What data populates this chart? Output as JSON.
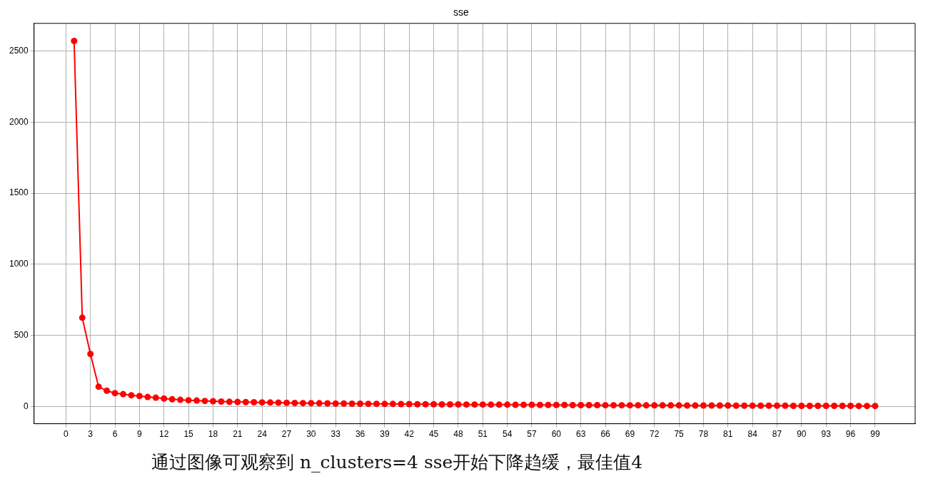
{
  "chart_data": {
    "type": "line",
    "title": "sse",
    "x": [
      1,
      2,
      3,
      4,
      5,
      6,
      7,
      8,
      9,
      10,
      11,
      12,
      13,
      14,
      15,
      16,
      17,
      18,
      19,
      20,
      21,
      22,
      23,
      24,
      25,
      26,
      27,
      28,
      29,
      30,
      31,
      32,
      33,
      34,
      35,
      36,
      37,
      38,
      39,
      40,
      41,
      42,
      43,
      44,
      45,
      46,
      47,
      48,
      49,
      50,
      51,
      52,
      53,
      54,
      55,
      56,
      57,
      58,
      59,
      60,
      61,
      62,
      63,
      64,
      65,
      66,
      67,
      68,
      69,
      70,
      71,
      72,
      73,
      74,
      75,
      76,
      77,
      78,
      79,
      80,
      81,
      82,
      83,
      84,
      85,
      86,
      87,
      88,
      89,
      90,
      91,
      92,
      93,
      94,
      95,
      96,
      97,
      98,
      99
    ],
    "series": [
      {
        "color": "#ff0000",
        "values": [
          2570,
          625,
          370,
          140,
          112,
          95,
          88,
          80,
          75,
          68,
          63,
          57,
          52,
          48,
          45,
          43,
          40,
          38,
          36,
          34,
          33,
          32,
          31,
          30,
          29,
          28,
          27,
          26,
          25,
          25,
          24,
          23,
          22,
          22,
          21,
          21,
          20,
          20,
          19,
          19,
          18,
          18,
          17,
          17,
          17,
          16,
          16,
          16,
          15,
          15,
          15,
          14,
          14,
          14,
          13,
          13,
          13,
          12,
          12,
          12,
          12,
          11,
          11,
          11,
          11,
          10,
          10,
          10,
          10,
          10,
          9,
          9,
          9,
          9,
          9,
          8,
          8,
          8,
          8,
          8,
          8,
          7,
          7,
          7,
          7,
          7,
          7,
          7,
          6,
          6,
          6,
          6,
          6,
          6,
          6,
          6,
          5,
          5,
          5
        ]
      }
    ],
    "xlim": [
      -3.9,
      103.9
    ],
    "xticks": [
      0,
      3,
      6,
      9,
      12,
      15,
      18,
      21,
      24,
      27,
      30,
      33,
      36,
      39,
      42,
      45,
      48,
      51,
      54,
      57,
      60,
      63,
      66,
      69,
      72,
      75,
      78,
      81,
      84,
      87,
      90,
      93,
      96,
      99
    ],
    "ylim": [
      -120,
      2694
    ],
    "yticks": [
      0,
      500,
      1000,
      1500,
      2000,
      2500
    ],
    "grid": true,
    "marker": "circle",
    "line_style": "solid",
    "annotations": [
      "通过图像可观察到 n_clusters=4 sse开始下降趋缓，最佳值4"
    ]
  }
}
